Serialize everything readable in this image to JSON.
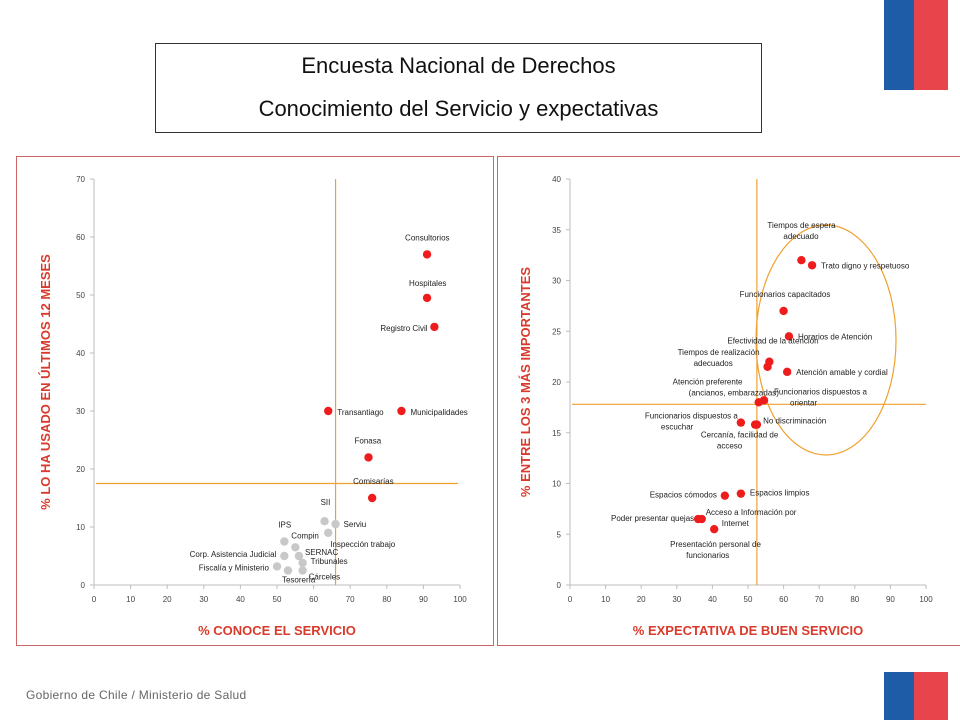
{
  "header": {
    "title_line1": "Encuesta Nacional de Derechos",
    "title_line2": "Conocimiento del Servicio y expectativas"
  },
  "footer": {
    "text": "Gobierno de Chile / Ministerio de Salud"
  },
  "colors": {
    "flag_blue": "#1f5ca8",
    "flag_red": "#e8444c",
    "point_red": "#ee1c1c",
    "point_gray": "#c8c8c8",
    "axis_title": "#d93a2b",
    "ref_line": "#f0a030"
  },
  "chart_data": [
    {
      "type": "scatter",
      "xlabel": "% CONOCE EL SERVICIO",
      "ylabel": "% LO HA USADO EN ÚLTIMOS 12 MESES",
      "xlim": [
        0,
        100
      ],
      "ylim": [
        0,
        70
      ],
      "x_ticks": [
        0,
        10,
        20,
        30,
        40,
        50,
        60,
        70,
        80,
        90,
        100
      ],
      "y_ticks": [
        0,
        10,
        20,
        30,
        40,
        50,
        60,
        70
      ],
      "reference_lines": {
        "x": 66,
        "y": 17.5
      },
      "points": [
        {
          "label": "Consultorios",
          "x": 91,
          "y": 57,
          "color": "red"
        },
        {
          "label": "Hospitales",
          "x": 91,
          "y": 49.5,
          "color": "red"
        },
        {
          "label": "Registro Civil",
          "x": 93,
          "y": 44.5,
          "color": "red"
        },
        {
          "label": "Transantiago",
          "x": 64,
          "y": 30,
          "color": "red"
        },
        {
          "label": "Municipalidades",
          "x": 84,
          "y": 30,
          "color": "red"
        },
        {
          "label": "Fonasa",
          "x": 75,
          "y": 22,
          "color": "red"
        },
        {
          "label": "Comisarías",
          "x": 76,
          "y": 15,
          "color": "red"
        },
        {
          "label": "SII",
          "x": 63,
          "y": 11,
          "color": "gray"
        },
        {
          "label": "Serviu",
          "x": 66,
          "y": 10.5,
          "color": "gray"
        },
        {
          "label": "IPS",
          "x": 52,
          "y": 7.5,
          "color": "gray"
        },
        {
          "label": "Compin",
          "x": 55,
          "y": 6.5,
          "color": "gray"
        },
        {
          "label": "Inspección trabajo",
          "x": 64,
          "y": 9,
          "color": "gray"
        },
        {
          "label": "Corp. Asistencia Judicial",
          "x": 52,
          "y": 5,
          "color": "gray"
        },
        {
          "label": "SERNAC",
          "x": 56,
          "y": 5,
          "color": "gray"
        },
        {
          "label": "Fiscalía y Ministerio",
          "x": 50,
          "y": 3.2,
          "color": "gray"
        },
        {
          "label": "Tribunales",
          "x": 57,
          "y": 3.8,
          "color": "gray"
        },
        {
          "label": "Tesorería",
          "x": 53,
          "y": 2.5,
          "color": "gray"
        },
        {
          "label": "Cárceles",
          "x": 57,
          "y": 2.5,
          "color": "gray"
        }
      ]
    },
    {
      "type": "scatter",
      "xlabel": "% EXPECTATIVA DE BUEN SERVICIO",
      "ylabel": "% ENTRE LOS 3 MÁS IMPORTANTES",
      "xlim": [
        0,
        100
      ],
      "ylim": [
        0,
        40
      ],
      "x_ticks": [
        0,
        10,
        20,
        30,
        40,
        50,
        60,
        70,
        80,
        90,
        100
      ],
      "y_ticks": [
        0,
        5,
        10,
        15,
        20,
        25,
        30,
        35,
        40
      ],
      "reference_lines": {
        "x": 52.5,
        "y": 17.8
      },
      "points": [
        {
          "label": "Tiempos de espera adecuado",
          "x": 65,
          "y": 32,
          "color": "red"
        },
        {
          "label": "Trato digno y respetuoso",
          "x": 68,
          "y": 31.5,
          "color": "red"
        },
        {
          "label": "Funcionarios capacitados",
          "x": 60,
          "y": 27,
          "color": "red"
        },
        {
          "label": "Horarios de Atención",
          "x": 61.5,
          "y": 24.5,
          "color": "red"
        },
        {
          "label": "Efectividad de la atención",
          "x": 56,
          "y": 22,
          "color": "red"
        },
        {
          "label": "Tiempos de realización adecuados",
          "x": 55.5,
          "y": 21.5,
          "color": "red"
        },
        {
          "label": "Atención amable y cordial",
          "x": 61,
          "y": 21,
          "color": "red"
        },
        {
          "label": "Atención preferente (ancianos, embarazadas)",
          "x": 53,
          "y": 18,
          "color": "red"
        },
        {
          "label": "Funcionarios dispuestos a orientar",
          "x": 54.5,
          "y": 18.2,
          "color": "red"
        },
        {
          "label": "Funcionarios dispuestos a escuchar",
          "x": 48,
          "y": 16,
          "color": "red"
        },
        {
          "label": "No discriminación",
          "x": 52,
          "y": 15.8,
          "color": "red"
        },
        {
          "label": "Cercanía, facilidad de acceso",
          "x": 52.5,
          "y": 15.8,
          "color": "red"
        },
        {
          "label": "Espacios cómodos",
          "x": 43.5,
          "y": 8.8,
          "color": "red"
        },
        {
          "label": "Espacios limpios",
          "x": 48,
          "y": 9,
          "color": "red"
        },
        {
          "label": "Poder presentar quejas",
          "x": 36,
          "y": 6.5,
          "color": "red"
        },
        {
          "label": "Acceso a Información por Internet",
          "x": 37,
          "y": 6.5,
          "color": "red"
        },
        {
          "label": "Presentación personal de funcionarios",
          "x": 40.5,
          "y": 5.5,
          "color": "red"
        }
      ]
    }
  ]
}
